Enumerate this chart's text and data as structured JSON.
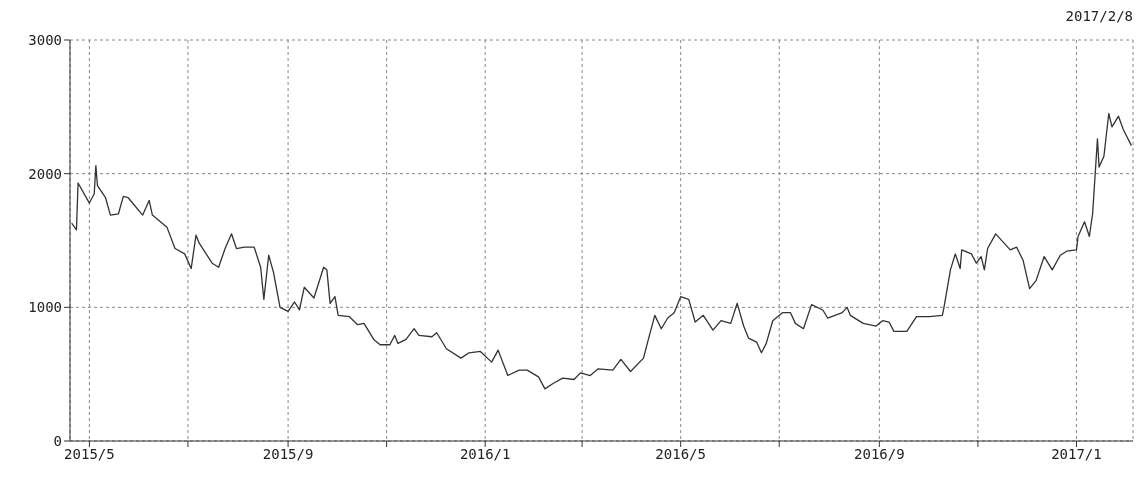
{
  "chart_data": {
    "type": "line",
    "subtitle": "2017/2/8",
    "color": "#333333",
    "marker": "none",
    "grid": true,
    "x": [
      "2015-04-20",
      "2015-04-23",
      "2015-04-24",
      "2015-05-01",
      "2015-05-04",
      "2015-05-05",
      "2015-05-06",
      "2015-05-11",
      "2015-05-14",
      "2015-05-19",
      "2015-05-22",
      "2015-05-25",
      "2015-06-03",
      "2015-06-07",
      "2015-06-09",
      "2015-06-18",
      "2015-06-23",
      "2015-06-29",
      "2015-07-03",
      "2015-07-06",
      "2015-07-08",
      "2015-07-16",
      "2015-07-20",
      "2015-07-24",
      "2015-07-28",
      "2015-07-31",
      "2015-08-05",
      "2015-08-11",
      "2015-08-15",
      "2015-08-17",
      "2015-08-20",
      "2015-08-23",
      "2015-08-27",
      "2015-09-01",
      "2015-09-05",
      "2015-09-08",
      "2015-09-11",
      "2015-09-17",
      "2015-09-23",
      "2015-09-25",
      "2015-09-27",
      "2015-09-30",
      "2015-10-02",
      "2015-10-09",
      "2015-10-14",
      "2015-10-18",
      "2015-10-24",
      "2015-10-28",
      "2015-11-03",
      "2015-11-06",
      "2015-11-08",
      "2015-11-13",
      "2015-11-18",
      "2015-11-21",
      "2015-11-29",
      "2015-12-02",
      "2015-12-08",
      "2015-12-17",
      "2015-12-22",
      "2015-12-29",
      "2016-01-05",
      "2016-01-09",
      "2016-01-15",
      "2016-01-22",
      "2016-01-27",
      "2016-02-03",
      "2016-02-07",
      "2016-02-12",
      "2016-02-18",
      "2016-02-25",
      "2016-02-29",
      "2016-03-06",
      "2016-03-11",
      "2016-03-20",
      "2016-03-25",
      "2016-03-31",
      "2016-04-08",
      "2016-04-11",
      "2016-04-15",
      "2016-04-19",
      "2016-04-23",
      "2016-04-27",
      "2016-05-01",
      "2016-05-06",
      "2016-05-10",
      "2016-05-15",
      "2016-05-21",
      "2016-05-26",
      "2016-06-01",
      "2016-06-05",
      "2016-06-09",
      "2016-06-12",
      "2016-06-17",
      "2016-06-20",
      "2016-06-23",
      "2016-06-27",
      "2016-07-03",
      "2016-07-08",
      "2016-07-11",
      "2016-07-16",
      "2016-07-21",
      "2016-07-28",
      "2016-07-31",
      "2016-08-09",
      "2016-08-12",
      "2016-08-14",
      "2016-08-22",
      "2016-08-30",
      "2016-09-03",
      "2016-09-07",
      "2016-09-10",
      "2016-09-18",
      "2016-09-24",
      "2016-10-02",
      "2016-10-10",
      "2016-10-11",
      "2016-10-15",
      "2016-10-18",
      "2016-10-21",
      "2016-10-22",
      "2016-10-28",
      "2016-10-31",
      "2016-11-03",
      "2016-11-05",
      "2016-11-07",
      "2016-11-12",
      "2016-11-21",
      "2016-11-25",
      "2016-11-29",
      "2016-12-03",
      "2016-12-07",
      "2016-12-12",
      "2016-12-17",
      "2016-12-22",
      "2016-12-26",
      "2017-01-01",
      "2017-01-02",
      "2017-01-06",
      "2017-01-09",
      "2017-01-11",
      "2017-01-14",
      "2017-01-15",
      "2017-01-18",
      "2017-01-21",
      "2017-01-23",
      "2017-01-27",
      "2017-01-30",
      "2017-02-04"
    ],
    "values": [
      1630,
      1580,
      1930,
      1780,
      1850,
      2060,
      1910,
      1820,
      1690,
      1700,
      1830,
      1820,
      1690,
      1800,
      1690,
      1600,
      1440,
      1400,
      1290,
      1540,
      1480,
      1330,
      1300,
      1440,
      1550,
      1440,
      1450,
      1450,
      1300,
      1060,
      1390,
      1260,
      1000,
      970,
      1040,
      980,
      1150,
      1070,
      1300,
      1280,
      1030,
      1080,
      940,
      930,
      870,
      880,
      760,
      720,
      720,
      790,
      730,
      760,
      840,
      790,
      780,
      810,
      690,
      620,
      660,
      670,
      590,
      680,
      490,
      530,
      530,
      480,
      390,
      430,
      470,
      460,
      510,
      490,
      540,
      530,
      610,
      520,
      620,
      760,
      940,
      840,
      920,
      960,
      1080,
      1060,
      890,
      940,
      830,
      900,
      880,
      1030,
      860,
      770,
      740,
      660,
      730,
      900,
      960,
      960,
      880,
      840,
      1020,
      980,
      920,
      960,
      1000,
      940,
      880,
      860,
      900,
      890,
      820,
      820,
      930,
      930,
      940,
      1000,
      1280,
      1400,
      1290,
      1430,
      1400,
      1330,
      1380,
      1280,
      1440,
      1550,
      1430,
      1450,
      1350,
      1140,
      1200,
      1380,
      1280,
      1390,
      1420,
      1430,
      1530,
      1640,
      1530,
      1700,
      2260,
      2050,
      2130,
      2450,
      2350,
      2430,
      2330,
      2210
    ],
    "xlim": [
      "2015-04-19",
      "2017-02-05"
    ],
    "xticks": [
      {
        "value": "2015-05-01",
        "label": "2015/5"
      },
      {
        "value": "2015-07-01",
        "label": null
      },
      {
        "value": "2015-09-01",
        "label": "2015/9"
      },
      {
        "value": "2015-11-01",
        "label": null
      },
      {
        "value": "2016-01-01",
        "label": "2016/1"
      },
      {
        "value": "2016-03-01",
        "label": null
      },
      {
        "value": "2016-05-01",
        "label": "2016/5"
      },
      {
        "value": "2016-07-01",
        "label": null
      },
      {
        "value": "2016-09-01",
        "label": "2016/9"
      },
      {
        "value": "2016-11-01",
        "label": null
      },
      {
        "value": "2017-01-01",
        "label": "2017/1"
      }
    ],
    "ylim": [
      0,
      3000
    ],
    "yticks": [
      0,
      1000,
      2000,
      3000
    ]
  }
}
